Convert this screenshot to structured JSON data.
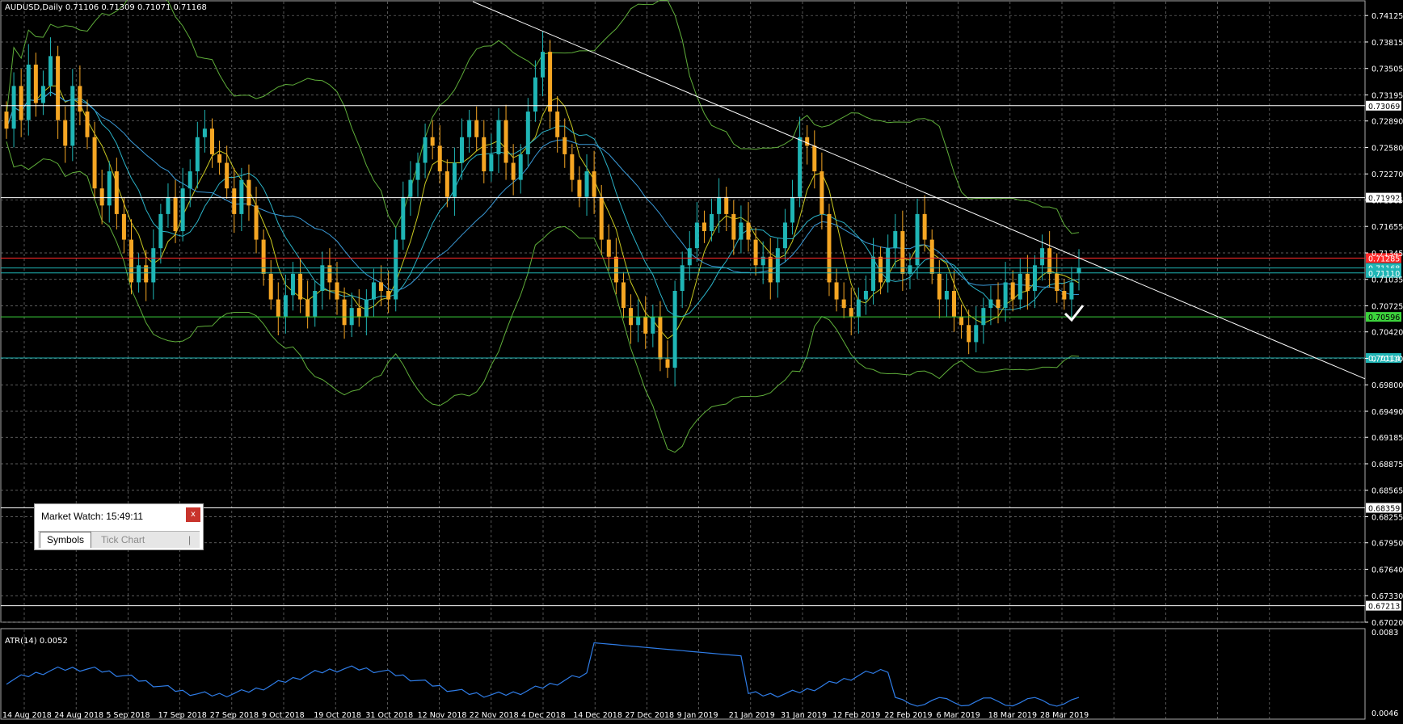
{
  "chart": {
    "header": "AUDUSD,Daily  0.71106 0.71309 0.71071 0.71168",
    "atr_header": "ATR(14) 0.0052",
    "bull_color": "#1fb5b5",
    "bear_color": "#f5a623",
    "background": "#000000",
    "grid_color": "#8a8a8a"
  },
  "chart_data": [
    {
      "type": "candlestick",
      "symbol": "AUDUSD",
      "timeframe": "Daily",
      "ohlc_last": {
        "open": 0.71106,
        "high": 0.71309,
        "low": 0.71071,
        "close": 0.71168
      },
      "price_ticks": [
        "0.74125",
        "0.73815",
        "0.73505",
        "0.73195",
        "0.72890",
        "0.72580",
        "0.72270",
        "0.71965",
        "0.71655",
        "0.71345",
        "0.71035",
        "0.70725",
        "0.70420",
        "0.70110",
        "0.69800",
        "0.69490",
        "0.69185",
        "0.68875",
        "0.68565",
        "0.68255",
        "0.67950",
        "0.67640",
        "0.67330",
        "0.67020"
      ],
      "date_ticks": [
        "14 Aug 2018",
        "24 Aug 2018",
        "5 Sep 2018",
        "17 Sep 2018",
        "27 Sep 2018",
        "9 Oct 2018",
        "19 Oct 2018",
        "31 Oct 2018",
        "12 Nov 2018",
        "22 Nov 2018",
        "4 Dec 2018",
        "14 Dec 2018",
        "27 Dec 2018",
        "9 Jan 2019",
        "21 Jan 2019",
        "31 Jan 2019",
        "12 Feb 2019",
        "22 Feb 2019",
        "6 Mar 2019",
        "18 Mar 2019",
        "28 Mar 2019"
      ],
      "ylim": [
        0.6702,
        0.7425
      ],
      "closes": [
        0.728,
        0.733,
        0.729,
        0.7355,
        0.731,
        0.733,
        0.7365,
        0.729,
        0.726,
        0.733,
        0.73,
        0.727,
        0.721,
        0.719,
        0.723,
        0.718,
        0.715,
        0.71,
        0.712,
        0.71,
        0.714,
        0.718,
        0.72,
        0.716,
        0.721,
        0.723,
        0.727,
        0.728,
        0.725,
        0.724,
        0.721,
        0.718,
        0.722,
        0.719,
        0.715,
        0.711,
        0.708,
        0.706,
        0.7085,
        0.711,
        0.708,
        0.706,
        0.709,
        0.712,
        0.71,
        0.708,
        0.705,
        0.707,
        0.706,
        0.708,
        0.71,
        0.709,
        0.708,
        0.715,
        0.72,
        0.722,
        0.724,
        0.727,
        0.726,
        0.723,
        0.72,
        0.724,
        0.727,
        0.729,
        0.727,
        0.723,
        0.725,
        0.729,
        0.724,
        0.722,
        0.725,
        0.73,
        0.734,
        0.737,
        0.73,
        0.727,
        0.725,
        0.722,
        0.72,
        0.723,
        0.72,
        0.715,
        0.713,
        0.71,
        0.707,
        0.705,
        0.706,
        0.704,
        0.706,
        0.701,
        0.7,
        0.709,
        0.712,
        0.714,
        0.717,
        0.716,
        0.718,
        0.72,
        0.718,
        0.715,
        0.717,
        0.715,
        0.712,
        0.713,
        0.71,
        0.714,
        0.717,
        0.72,
        0.727,
        0.726,
        0.723,
        0.718,
        0.71,
        0.708,
        0.707,
        0.706,
        0.708,
        0.709,
        0.713,
        0.71,
        0.714,
        0.716,
        0.711,
        0.712,
        0.718,
        0.715,
        0.711,
        0.708,
        0.709,
        0.706,
        0.705,
        0.703,
        0.705,
        0.707,
        0.708,
        0.707,
        0.71,
        0.708,
        0.711,
        0.709,
        0.712,
        0.714,
        0.711,
        0.709,
        0.708,
        0.71,
        0.7117
      ],
      "atr": {
        "label": "ATR(14)",
        "value": 0.0052,
        "ylim": [
          0.0046,
          0.0083
        ],
        "ticks": [
          "0.0083",
          "0.0046"
        ]
      }
    }
  ],
  "horizontal_levels": [
    {
      "price": "0.73069",
      "color": "#ffffff"
    },
    {
      "price": "0.71992",
      "color": "#ffffff"
    },
    {
      "price": "0.71285",
      "color": "#ff2a2a"
    },
    {
      "price": "0.71168",
      "color": "#1fb5b5"
    },
    {
      "price": "0.71110",
      "color": "#1fb5b5"
    },
    {
      "price": "0.70596",
      "color": "#3cd23c"
    },
    {
      "price": "0.70114",
      "color": "#1fb5b5"
    },
    {
      "price": "0.68359",
      "color": "#ffffff"
    },
    {
      "price": "0.67213",
      "color": "#ffffff"
    }
  ],
  "market_watch": {
    "title": "Market Watch: 15:49:11",
    "close_label": "x",
    "tabs": [
      "Symbols",
      "Tick Chart"
    ],
    "separator": "|"
  }
}
